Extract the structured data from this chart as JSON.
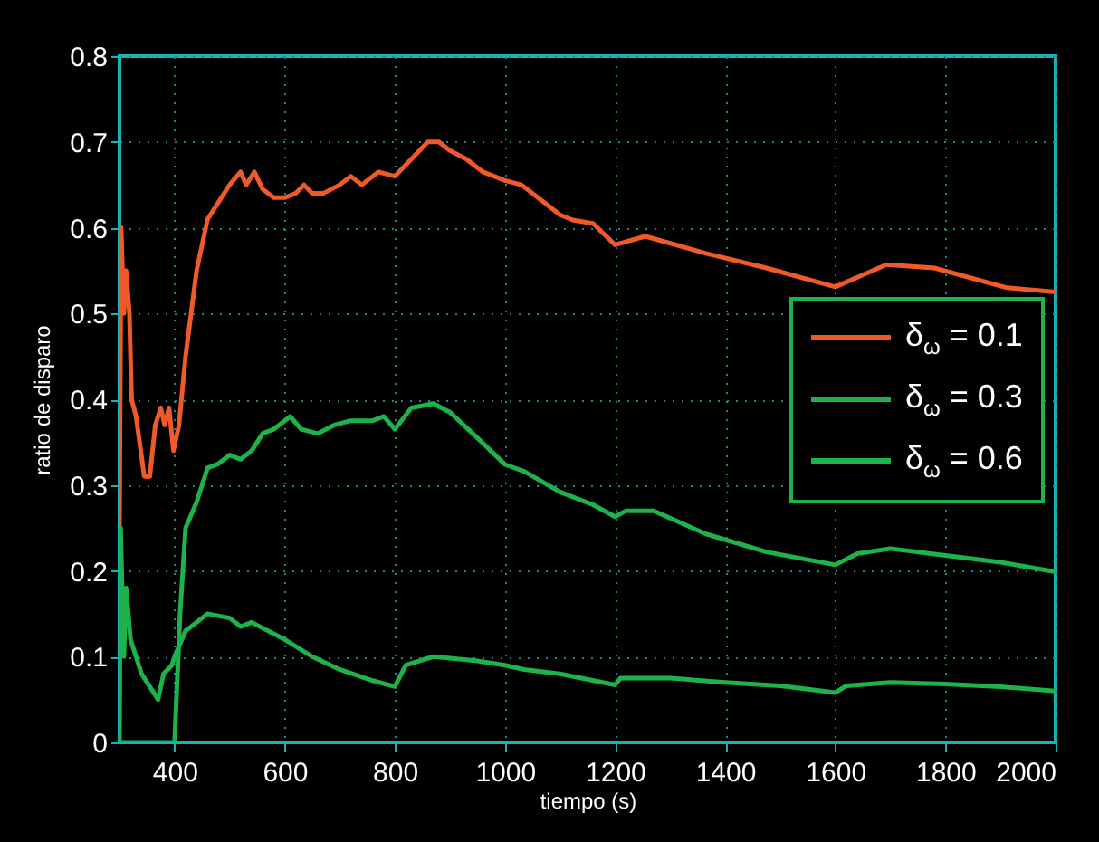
{
  "chart_data": {
    "type": "line",
    "xlabel": "tiempo (s)",
    "ylabel": "ratio de disparo",
    "xlim": [
      300,
      2000
    ],
    "ylim": [
      0,
      0.8
    ],
    "xticks": [
      400,
      600,
      800,
      1000,
      1200,
      1400,
      1600,
      1800,
      2000
    ],
    "yticks": [
      0,
      0.1,
      0.2,
      0.3,
      0.4,
      0.5,
      0.6,
      0.7,
      0.8
    ],
    "grid": true,
    "legend": "right",
    "series": [
      {
        "name": "δ$_{ω}$ = 0.1",
        "color": "#f05a28",
        "x": [
          300,
          303,
          308,
          312,
          318,
          322,
          330,
          345,
          355,
          365,
          375,
          382,
          390,
          398,
          408,
          420,
          440,
          460,
          480,
          500,
          520,
          530,
          545,
          560,
          580,
          600,
          620,
          635,
          650,
          670,
          700,
          720,
          740,
          770,
          800,
          830,
          860,
          880,
          900,
          930,
          960,
          1000,
          1030,
          1060,
          1100,
          1123,
          1160,
          1200,
          1255,
          1365,
          1475,
          1600,
          1693,
          1780,
          1912,
          2000
        ],
        "values": [
          0.25,
          0.6,
          0.5,
          0.55,
          0.5,
          0.4,
          0.38,
          0.31,
          0.31,
          0.37,
          0.39,
          0.37,
          0.39,
          0.34,
          0.37,
          0.45,
          0.55,
          0.61,
          0.63,
          0.65,
          0.665,
          0.65,
          0.665,
          0.645,
          0.635,
          0.635,
          0.64,
          0.65,
          0.64,
          0.64,
          0.65,
          0.66,
          0.65,
          0.665,
          0.66,
          0.68,
          0.7,
          0.7,
          0.69,
          0.68,
          0.665,
          0.655,
          0.65,
          0.635,
          0.615,
          0.609,
          0.605,
          0.58,
          0.59,
          0.57,
          0.553,
          0.531,
          0.557,
          0.553,
          0.53,
          0.525
        ]
      },
      {
        "name": "δ$_{ω}$ = 0.3",
        "color": "#1db34a",
        "x": [
          300,
          400,
          410,
          420,
          440,
          460,
          480,
          500,
          520,
          540,
          560,
          580,
          600,
          610,
          630,
          660,
          690,
          720,
          760,
          780,
          800,
          830,
          870,
          900,
          950,
          1000,
          1035,
          1100,
          1160,
          1200,
          1220,
          1270,
          1365,
          1475,
          1600,
          1640,
          1700,
          1800,
          1900,
          2000
        ],
        "values": [
          0,
          0,
          0.15,
          0.25,
          0.28,
          0.32,
          0.325,
          0.335,
          0.33,
          0.34,
          0.36,
          0.365,
          0.375,
          0.38,
          0.365,
          0.36,
          0.37,
          0.375,
          0.375,
          0.38,
          0.365,
          0.39,
          0.395,
          0.385,
          0.355,
          0.324,
          0.316,
          0.292,
          0.277,
          0.263,
          0.27,
          0.27,
          0.243,
          0.222,
          0.207,
          0.22,
          0.226,
          0.218,
          0.21,
          0.199
        ]
      },
      {
        "name": "δ$_{ω}$ = 0.6",
        "color": "#1db34a",
        "x": [
          300,
          302,
          308,
          312,
          320,
          340,
          370,
          380,
          395,
          400,
          420,
          460,
          500,
          520,
          540,
          600,
          650,
          700,
          760,
          800,
          820,
          870,
          950,
          1000,
          1035,
          1100,
          1200,
          1210,
          1300,
          1400,
          1500,
          1600,
          1620,
          1700,
          1800,
          1900,
          2000
        ],
        "values": [
          0,
          0.25,
          0.1,
          0.18,
          0.12,
          0.08,
          0.05,
          0.08,
          0.09,
          0.1,
          0.13,
          0.15,
          0.145,
          0.135,
          0.14,
          0.12,
          0.1,
          0.085,
          0.072,
          0.065,
          0.09,
          0.1,
          0.095,
          0.09,
          0.085,
          0.08,
          0.067,
          0.075,
          0.075,
          0.07,
          0.066,
          0.058,
          0.066,
          0.07,
          0.068,
          0.065,
          0.06
        ]
      }
    ]
  }
}
